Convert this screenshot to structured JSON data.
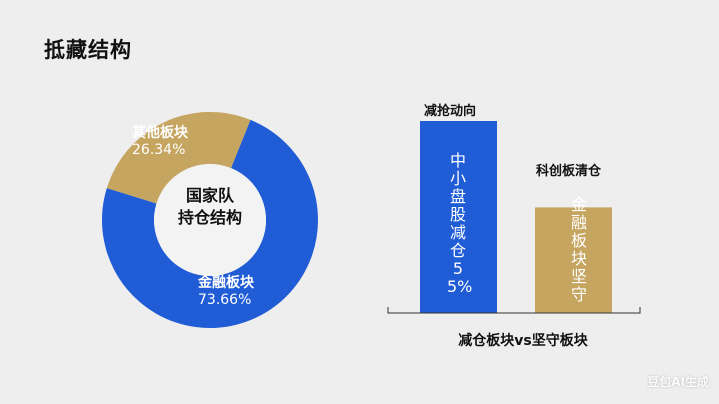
{
  "title": "抵藏结构",
  "chart_data": [
    {
      "type": "pie",
      "center_label": [
        "国家队",
        "持仓结构"
      ],
      "slices": [
        {
          "label": "金融板块",
          "value": 73.66,
          "value_label": "73.66%",
          "color": "#1f5cd6"
        },
        {
          "label": "其他板块",
          "value": 26.34,
          "value_label": "26.34%",
          "color": "#c5a55f"
        }
      ]
    },
    {
      "type": "bar",
      "categories": [
        "减抢动向",
        "科创板清仓"
      ],
      "bar_texts": [
        "中小盘股减仓55%",
        "金融板块坚守"
      ],
      "values": [
        1.0,
        0.55
      ],
      "colors": [
        "#1f5cd6",
        "#c5a55f"
      ],
      "xlabel": "减仓板块vs坚守板块"
    }
  ],
  "watermark": "豆包AI生成"
}
